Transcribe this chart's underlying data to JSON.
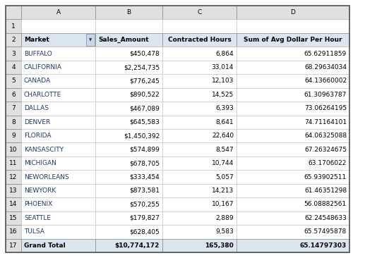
{
  "col_headers": [
    "A",
    "B",
    "C",
    "D"
  ],
  "headers": [
    "Market",
    "Sales_Amount",
    "Contracted Hours",
    "Sum of Avg Dollar Per Hour"
  ],
  "markets": [
    "BUFFALO",
    "CALIFORNIA",
    "CANADA",
    "CHARLOTTE",
    "DALLAS",
    "DENVER",
    "FLORIDA",
    "KANSASCITY",
    "MICHIGAN",
    "NEWORLEANS",
    "NEWYORK",
    "PHOENIX",
    "SEATTLE",
    "TULSA"
  ],
  "sales_amounts": [
    "$450,478",
    "$2,254,735",
    "$776,245",
    "$890,522",
    "$467,089",
    "$645,583",
    "$1,450,392",
    "$574,899",
    "$678,705",
    "$333,454",
    "$873,581",
    "$570,255",
    "$179,827",
    "$628,405"
  ],
  "contracted_hours": [
    "6,864",
    "33,014",
    "12,103",
    "14,525",
    "6,393",
    "8,641",
    "22,640",
    "8,547",
    "10,744",
    "5,057",
    "14,213",
    "10,167",
    "2,889",
    "9,583"
  ],
  "avg_dollar": [
    "65.62911859",
    "68.29634034",
    "64.13660002",
    "61.30963787",
    "73.06264195",
    "74.71164101",
    "64.06325088",
    "67.26324675",
    "63.1706022",
    "65.93902511",
    "61.46351298",
    "56.08882561",
    "62.24548633",
    "65.57495878"
  ],
  "grand_total_sales": "$10,774,172",
  "grand_total_hours": "165,380",
  "grand_total_avg": "65.14797303",
  "col_header_bg": "#e0e0e0",
  "header_bg": "#dce6f1",
  "data_bg": "#ffffff",
  "grand_total_bg": "#dce6f1",
  "border_color_heavy": "#888888",
  "border_color_light": "#c0c0c0",
  "text_color_market": "#1f3864",
  "text_color_data": "#000000",
  "fig_width": 5.17,
  "fig_height": 3.66,
  "dpi": 100
}
